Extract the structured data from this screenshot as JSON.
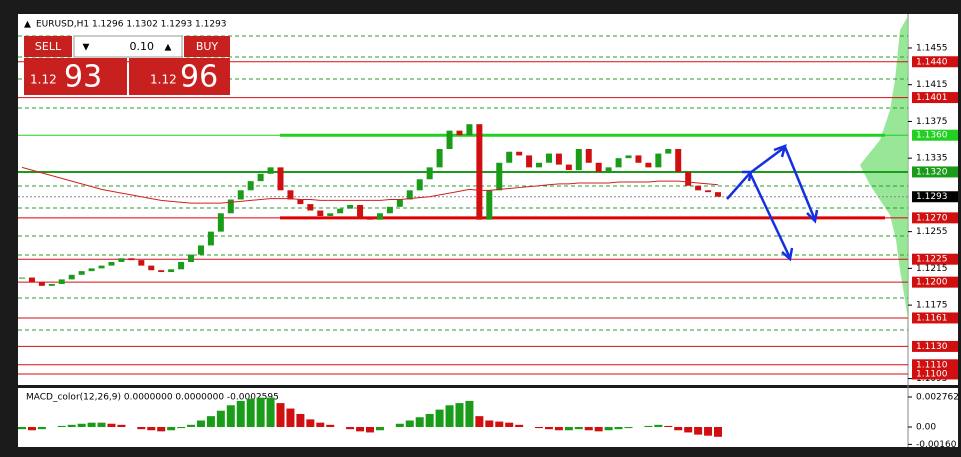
{
  "chart_data": {
    "type": "candlestick",
    "symbol_info": "EURUSD,H1  1.1296 1.1302 1.1293 1.1293",
    "trade_panel": {
      "sell": "SELL",
      "lot": "0.10",
      "buy": "BUY",
      "sell_prefix": "1.12",
      "sell_big": "93",
      "buy_prefix": "1.12",
      "buy_big": "96"
    },
    "ylim": [
      1.1088,
      1.1492
    ],
    "yticks": [
      1.1455,
      1.1415,
      1.1375,
      1.1335,
      1.1255,
      1.1215,
      1.1175,
      1.1095
    ],
    "series": [
      {
        "name": "close",
        "color": "#1a9c1a",
        "down_color": "#d01010",
        "values": [
          1.1205,
          1.12,
          1.1196,
          1.1198,
          1.1203,
          1.1208,
          1.1212,
          1.1215,
          1.1218,
          1.1222,
          1.1226,
          1.1224,
          1.1218,
          1.1213,
          1.1211,
          1.1214,
          1.1222,
          1.123,
          1.124,
          1.1255,
          1.1275,
          1.129,
          1.13,
          1.131,
          1.1318,
          1.1325,
          1.13,
          1.129,
          1.1285,
          1.1278,
          1.1272,
          1.1275,
          1.128,
          1.1284,
          1.127,
          1.1268,
          1.1275,
          1.1282,
          1.129,
          1.13,
          1.1312,
          1.1325,
          1.1345,
          1.1365,
          1.136,
          1.1372,
          1.1268,
          1.13,
          1.133,
          1.1342,
          1.1338,
          1.1325,
          1.133,
          1.134,
          1.1328,
          1.1322,
          1.1345,
          1.133,
          1.132,
          1.1325,
          1.1335,
          1.1338,
          1.133,
          1.1325,
          1.134,
          1.1345,
          1.132,
          1.1305,
          1.13,
          1.1298,
          1.1293
        ]
      },
      {
        "name": "moving average",
        "color": "#d02020",
        "values": [
          1.1325,
          1.1322,
          1.1319,
          1.1316,
          1.1313,
          1.131,
          1.1307,
          1.1304,
          1.1301,
          1.1299,
          1.1297,
          1.1295,
          1.1293,
          1.1291,
          1.1289,
          1.1288,
          1.1287,
          1.1286,
          1.1286,
          1.1286,
          1.1286,
          1.1287,
          1.1288,
          1.1289,
          1.129,
          1.1291,
          1.1291,
          1.1291,
          1.129,
          1.129,
          1.1289,
          1.1289,
          1.1289,
          1.1289,
          1.1289,
          1.1289,
          1.1289,
          1.129,
          1.129,
          1.1291,
          1.1292,
          1.1293,
          1.1295,
          1.1297,
          1.1299,
          1.1301,
          1.13,
          1.13,
          1.1301,
          1.1302,
          1.1303,
          1.1304,
          1.1305,
          1.1306,
          1.1307,
          1.1307,
          1.1308,
          1.1308,
          1.1308,
          1.1308,
          1.1309,
          1.1309,
          1.1309,
          1.1309,
          1.131,
          1.131,
          1.131,
          1.1309,
          1.1308,
          1.1307,
          1.1306
        ]
      }
    ],
    "levels": [
      {
        "value": 1.144,
        "label": "1.1440",
        "color": "#d01010",
        "width": 1
      },
      {
        "value": 1.1401,
        "label": "1.1401",
        "color": "#d01010",
        "width": 1
      },
      {
        "value": 1.136,
        "label": "1.1360",
        "color": "#22d022",
        "width": 3
      },
      {
        "value": 1.132,
        "label": "1.1320",
        "color": "#1a9c1a",
        "width": 2
      },
      {
        "value": 1.127,
        "label": "1.1270",
        "color": "#e00000",
        "width": 3
      },
      {
        "value": 1.1225,
        "label": "1.1225",
        "color": "#d01010",
        "width": 1
      },
      {
        "value": 1.12,
        "label": "1.1200",
        "color": "#d01010",
        "width": 1
      },
      {
        "value": 1.1161,
        "label": "1.1161",
        "color": "#d01010",
        "width": 1
      },
      {
        "value": 1.113,
        "label": "1.1130",
        "color": "#d01010",
        "width": 1
      },
      {
        "value": 1.111,
        "label": "1.1110",
        "color": "#d01010",
        "width": 1
      },
      {
        "value": 1.11,
        "label": "1.1100",
        "color": "#d01010",
        "width": 1
      }
    ],
    "current_price": {
      "value": 1.1293,
      "label": "1.1293"
    },
    "macd": {
      "label": "MACD_color(12,26,9) 0.0000000 0.0000000 -0.0002595",
      "ylim": [
        0.00359,
        -0.00184
      ],
      "yticks": [
        0.002762,
        {
          "value": 0,
          "label": "0.00"
        },
        {
          "value": -0.0016,
          "label": "-0.00160"
        }
      ],
      "up_color": "#1a9c1a",
      "down_color": "#d01010",
      "values": [
        -0.0002,
        -0.0003,
        -0.0002,
        0,
        0.0001,
        0.0002,
        0.0003,
        0.0004,
        0.0004,
        0.0003,
        0.0002,
        0,
        -0.0002,
        -0.0003,
        -0.0004,
        -0.0003,
        -0.0001,
        0.0002,
        0.0006,
        0.001,
        0.0015,
        0.002,
        0.0024,
        0.0026,
        0.0027,
        0.0027,
        0.0022,
        0.0017,
        0.0012,
        0.0007,
        0.0004,
        0.0002,
        0,
        -0.0002,
        -0.0004,
        -0.0005,
        -0.0003,
        0,
        0.0003,
        0.0006,
        0.0009,
        0.0012,
        0.0016,
        0.002,
        0.0022,
        0.0024,
        0.001,
        0.0006,
        0.0005,
        0.0004,
        0.0002,
        0,
        -0.0001,
        -0.0002,
        -0.0003,
        -0.0003,
        -0.0002,
        -0.0003,
        -0.0004,
        -0.0003,
        -0.0002,
        -0.0001,
        0,
        0.0001,
        0.0002,
        0.0001,
        -0.0003,
        -0.0005,
        -0.0007,
        -0.0008,
        -0.0009
      ]
    }
  }
}
